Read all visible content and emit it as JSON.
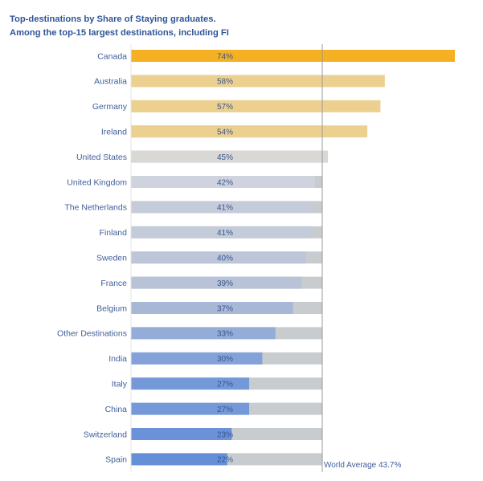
{
  "chart_data": {
    "type": "bar",
    "orientation": "horizontal",
    "title": "Top-destinations by Share of Staying graduates.",
    "subtitle": "Among the top-15 largest destinations, including FI",
    "xlabel": "",
    "ylabel": "",
    "xlim": [
      0,
      74
    ],
    "grid": false,
    "legend": "none",
    "categories": [
      "Canada",
      "Australia",
      "Germany",
      "Ireland",
      "United States",
      "United Kingdom",
      "The Netherlands",
      "Finland",
      "Sweden",
      "France",
      "Belgium",
      "Other Destinations",
      "India",
      "Italy",
      "China",
      "Switzerland",
      "Spain"
    ],
    "values": [
      74,
      58,
      57,
      54,
      45,
      42,
      41,
      41,
      40,
      39,
      37,
      33,
      30,
      27,
      27,
      23,
      22
    ],
    "value_labels": [
      "74%",
      "58%",
      "57%",
      "54%",
      "45%",
      "42%",
      "41%",
      "41%",
      "40%",
      "39%",
      "37%",
      "33%",
      "30%",
      "27%",
      "27%",
      "23%",
      "22%"
    ],
    "bar_colors": [
      "#f5b123",
      "#ecd08f",
      "#ecd08f",
      "#ecd08f",
      "#d9d8d4",
      "#cfd3dd",
      "#c5ccd9",
      "#c4cbd9",
      "#bdc6d8",
      "#b9c3d7",
      "#a7b8d6",
      "#93acd8",
      "#84a2d9",
      "#7498d8",
      "#7498d8",
      "#6b91d8",
      "#6590d8"
    ],
    "background_bar_color": "#c8cccf",
    "reference_line": {
      "value": 43.7,
      "label": "World Average 43.7%",
      "color": "#999999"
    }
  }
}
